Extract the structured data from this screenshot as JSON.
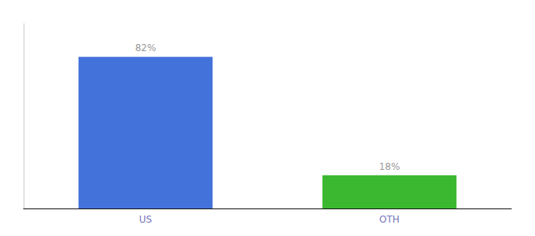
{
  "chart_data": {
    "type": "bar",
    "categories": [
      "US",
      "OTH"
    ],
    "values": [
      82,
      18
    ],
    "value_labels": [
      "82%",
      "18%"
    ],
    "colors": [
      "#4472db",
      "#3cb830"
    ],
    "data_labels": true,
    "ylim": [
      0,
      100
    ],
    "grid": false,
    "tick_labels": "x"
  }
}
